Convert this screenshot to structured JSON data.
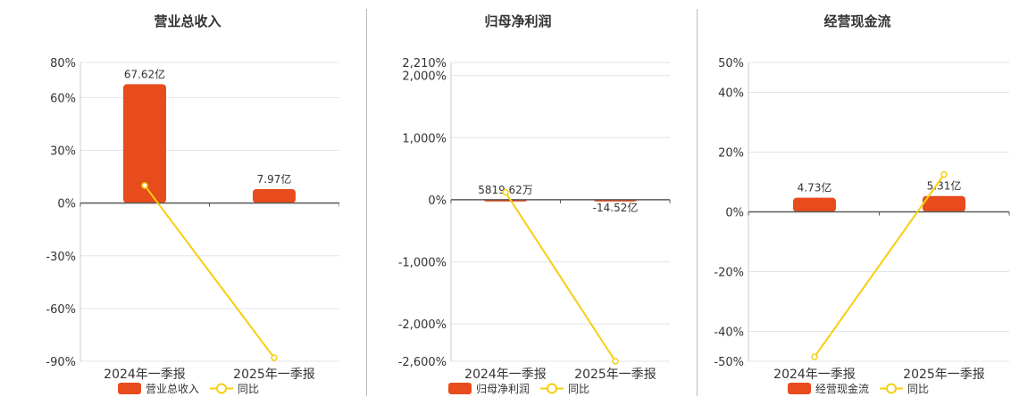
{
  "colors": {
    "bar": "#e84b1c",
    "line": "#f5cf10",
    "axis": "#5a5a5a",
    "grid": "#e3e3ee",
    "divider": "#bbbbbb"
  },
  "chart_data": [
    {
      "type": "bar",
      "title": "营业总收入",
      "categories": [
        "2024年一季报",
        "2025年一季报"
      ],
      "series": [
        {
          "name": "营业总收入",
          "kind": "bar",
          "values": [
            67.62,
            7.97
          ],
          "labels": [
            "67.62亿",
            "7.97亿"
          ]
        },
        {
          "name": "同比",
          "kind": "line",
          "values": [
            10,
            -88
          ]
        }
      ],
      "ylim": [
        -90,
        80
      ],
      "ticks": [
        "80%",
        "60%",
        "30%",
        "0%",
        "-30%",
        "-60%",
        "-90%"
      ],
      "tick_values": [
        80,
        60,
        30,
        0,
        -30,
        -60,
        -90
      ],
      "grid": true,
      "legend": "bottom"
    },
    {
      "type": "bar",
      "title": "归母净利润",
      "categories": [
        "2024年一季报",
        "2025年一季报"
      ],
      "series": [
        {
          "name": "归母净利润",
          "kind": "bar",
          "values": [
            0.5819,
            -14.52
          ],
          "labels": [
            "5819.62万",
            "-14.52亿"
          ]
        },
        {
          "name": "同比",
          "kind": "line",
          "values": [
            120,
            -2600
          ]
        }
      ],
      "ylim": [
        -2600,
        2210
      ],
      "ticks": [
        "2,210%",
        "2,000%",
        "1,000%",
        "0%",
        "-1,000%",
        "-2,000%",
        "-2,600%"
      ],
      "tick_values": [
        2210,
        2000,
        1000,
        0,
        -1000,
        -2000,
        -2600
      ],
      "grid": true,
      "legend": "bottom"
    },
    {
      "type": "bar",
      "title": "经营现金流",
      "categories": [
        "2024年一季报",
        "2025年一季报"
      ],
      "series": [
        {
          "name": "经营现金流",
          "kind": "bar",
          "values": [
            4.73,
            5.31
          ],
          "labels": [
            "4.73亿",
            "5.31亿"
          ]
        },
        {
          "name": "同比",
          "kind": "line",
          "values": [
            -48.5,
            12.5
          ]
        }
      ],
      "ylim": [
        -50,
        50
      ],
      "ticks": [
        "50%",
        "40%",
        "20%",
        "0%",
        "-20%",
        "-40%",
        "-50%"
      ],
      "tick_values": [
        50,
        40,
        20,
        0,
        -20,
        -40,
        -50
      ],
      "grid": true,
      "legend": "bottom"
    }
  ]
}
